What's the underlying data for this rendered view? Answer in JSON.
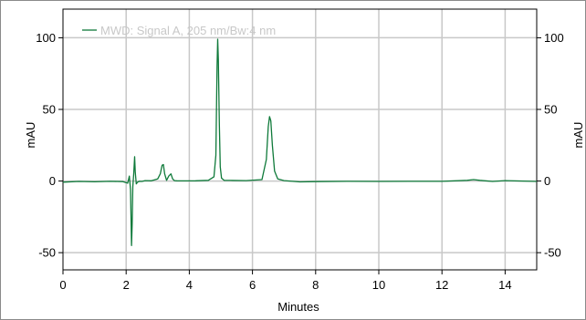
{
  "chart_data": {
    "type": "line",
    "title": "",
    "xlabel": "Minutes",
    "ylabel": "mAU",
    "y2label": "mAU",
    "xlim": [
      0,
      15
    ],
    "ylim": [
      -62,
      120
    ],
    "x_ticks": [
      0,
      2,
      4,
      6,
      8,
      10,
      12,
      14
    ],
    "y_ticks": [
      -50,
      0,
      50,
      100
    ],
    "grid": true,
    "legend_position": "top-left",
    "line_color": "#0f7a3a",
    "grid_color": "#c8c8c8",
    "series": [
      {
        "name": "MWD: Signal A, 205 nm/Bw:4 nm",
        "x": [
          0,
          0.5,
          1.0,
          1.5,
          1.9,
          2.05,
          2.1,
          2.14,
          2.17,
          2.19,
          2.21,
          2.24,
          2.27,
          2.29,
          2.32,
          2.36,
          2.42,
          2.5,
          2.6,
          2.8,
          3.0,
          3.08,
          3.14,
          3.18,
          3.22,
          3.28,
          3.35,
          3.42,
          3.47,
          3.53,
          3.6,
          3.8,
          4.2,
          4.6,
          4.78,
          4.84,
          4.88,
          4.9,
          4.92,
          4.95,
          4.98,
          5.02,
          5.1,
          5.3,
          5.8,
          6.3,
          6.44,
          6.5,
          6.54,
          6.58,
          6.63,
          6.7,
          6.8,
          7.0,
          7.5,
          8.0,
          9.0,
          10.0,
          11.0,
          12.0,
          12.8,
          13.0,
          13.2,
          13.6,
          14.0,
          15.0
        ],
        "y": [
          -0.8,
          -0.3,
          -0.5,
          -0.2,
          -0.4,
          -1.5,
          3.5,
          -6,
          -45,
          -30,
          -4,
          5,
          17,
          6,
          -2,
          -0.8,
          -0.2,
          -0.3,
          0.3,
          0.2,
          1.5,
          5,
          11,
          11.5,
          5,
          0.5,
          3.5,
          5,
          1.5,
          0.3,
          0.2,
          0.1,
          0.2,
          0.5,
          3,
          18,
          80,
          99,
          85,
          40,
          10,
          2,
          0.5,
          0.4,
          0.3,
          1,
          15,
          38,
          45,
          42,
          25,
          7,
          1.5,
          0.3,
          -0.6,
          -0.4,
          -0.2,
          -0.3,
          -0.2,
          -0.2,
          0.5,
          1,
          0.5,
          -0.3,
          0.3,
          -0.3
        ]
      }
    ]
  }
}
